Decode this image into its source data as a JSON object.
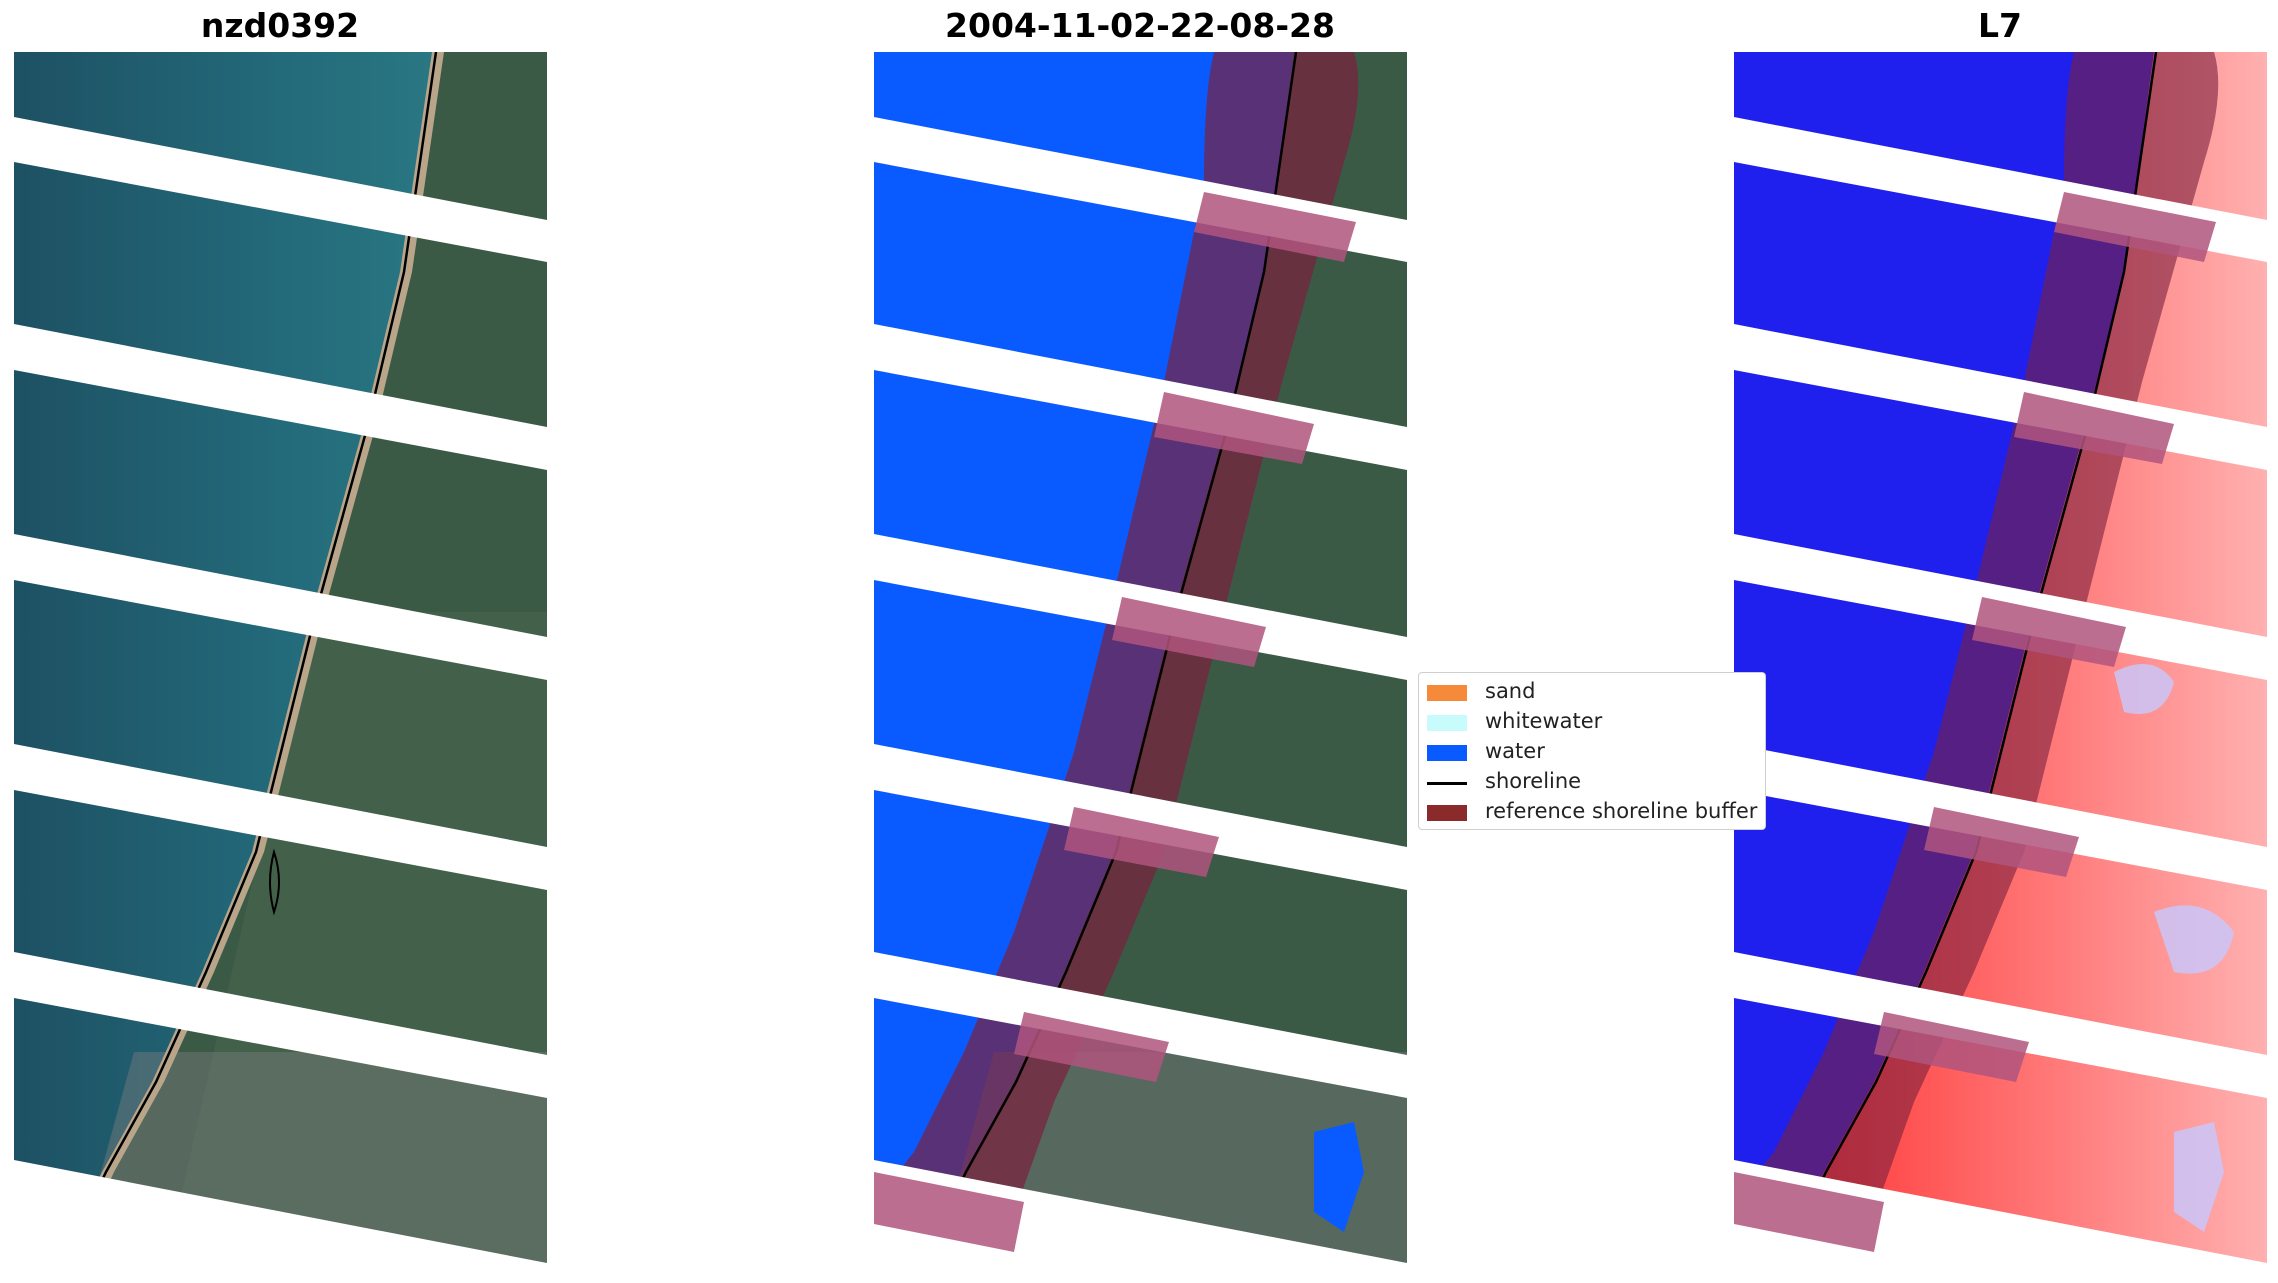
{
  "panels": [
    {
      "title": "nzd0392"
    },
    {
      "title": "2004-11-02-22-08-28"
    },
    {
      "title": "L7"
    }
  ],
  "legend": {
    "items": [
      {
        "label": "sand",
        "kind": "patch",
        "color": "#f58a3a"
      },
      {
        "label": "whitewater",
        "kind": "patch",
        "color": "#c8fbfb"
      },
      {
        "label": "water",
        "kind": "patch",
        "color": "#0a5bff"
      },
      {
        "label": "shoreline",
        "kind": "line",
        "color": "#000000"
      },
      {
        "label": "reference shoreline buffer",
        "kind": "patch",
        "color": "#8b2a2a"
      }
    ]
  },
  "colors": {
    "sea": "#1f5b6e",
    "land": "#3a5a44",
    "beach": "#b9a58a",
    "water_class": "#0a5bff",
    "buffer_overlay": "#7a1f3d",
    "index_positive": "#ff3030",
    "index_negative": "#1e1ee6"
  }
}
